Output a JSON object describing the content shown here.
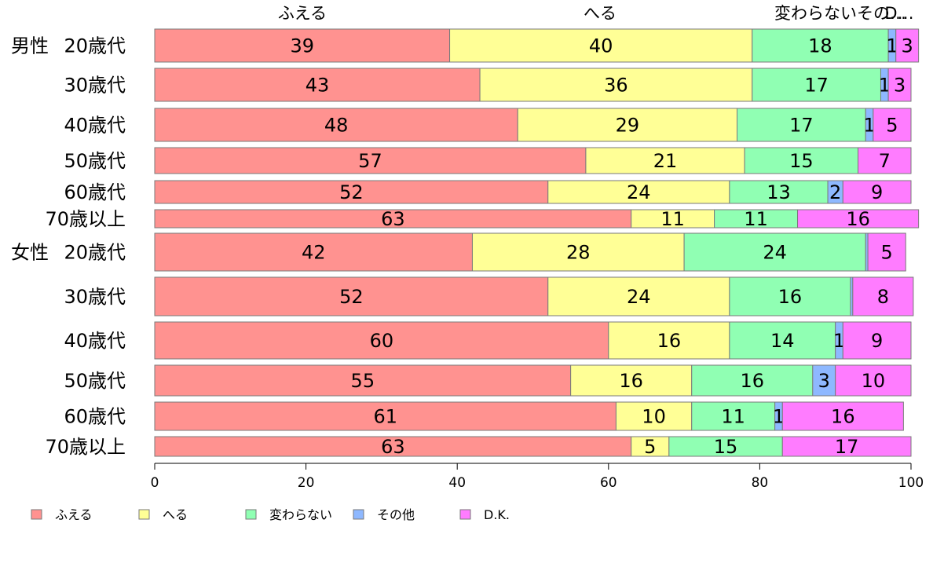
{
  "chart_data": {
    "type": "bar",
    "orientation": "horizontal",
    "stacked": true,
    "title": "",
    "xlabel": "",
    "ylabel": "",
    "xlim": [
      0,
      100
    ],
    "x_ticks": [
      "0",
      "20",
      "40",
      "60",
      "80",
      "100"
    ],
    "legend_position": "bottom",
    "grid": false,
    "series": [
      {
        "name": "ふえる",
        "color": "#FF9290"
      },
      {
        "name": "へる",
        "color": "#FFFF96"
      },
      {
        "name": "変わらない",
        "color": "#90FFB3"
      },
      {
        "name": "その他",
        "color": "#8EB8FF"
      },
      {
        "name": "D.K.",
        "color": "#FF7CFF"
      }
    ],
    "top_labels": [
      "ふえる",
      "へる",
      "変わらないその…",
      "D…"
    ],
    "rows": [
      {
        "group": "男性",
        "label": "20歳代",
        "values": [
          39,
          40,
          18,
          1,
          3
        ]
      },
      {
        "group": "",
        "label": "30歳代",
        "values": [
          43,
          36,
          17,
          1,
          3
        ]
      },
      {
        "group": "",
        "label": "40歳代",
        "values": [
          48,
          29,
          17,
          1,
          5
        ]
      },
      {
        "group": "",
        "label": "50歳代",
        "values": [
          57,
          21,
          15,
          0,
          7
        ]
      },
      {
        "group": "",
        "label": "60歳代",
        "values": [
          52,
          24,
          13,
          2,
          9
        ]
      },
      {
        "group": "",
        "label": "70歳以上",
        "values": [
          63,
          11,
          11,
          0,
          16
        ]
      },
      {
        "group": "女性",
        "label": "20歳代",
        "values": [
          42,
          28,
          24,
          0.3,
          5
        ]
      },
      {
        "group": "",
        "label": "30歳代",
        "values": [
          52,
          24,
          16,
          0.3,
          8
        ]
      },
      {
        "group": "",
        "label": "40歳代",
        "values": [
          60,
          16,
          14,
          1,
          9
        ]
      },
      {
        "group": "",
        "label": "50歳代",
        "values": [
          55,
          16,
          16,
          3,
          10
        ]
      },
      {
        "group": "",
        "label": "60歳代",
        "values": [
          61,
          10,
          11,
          1,
          16
        ]
      },
      {
        "group": "",
        "label": "70歳以上",
        "values": [
          63,
          5,
          15,
          0,
          17
        ]
      }
    ]
  }
}
